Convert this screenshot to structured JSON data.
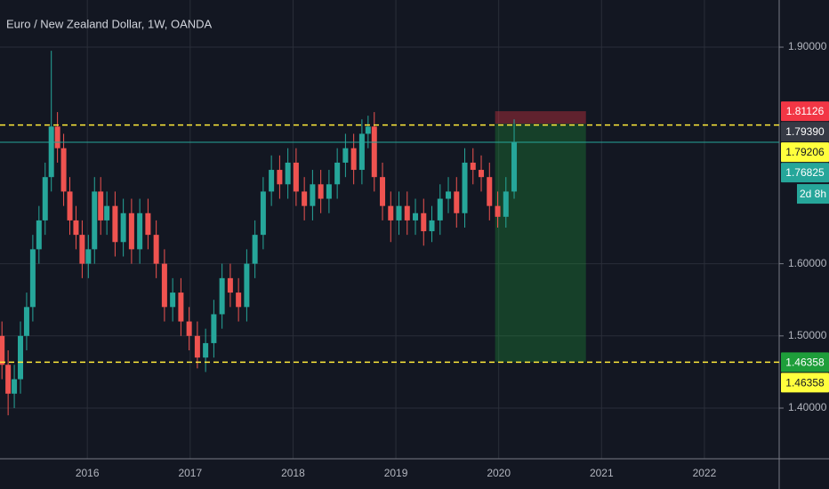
{
  "chart_data": {
    "type": "candlestick",
    "title": "Euro / New Zealand Dollar, 1W, OANDA",
    "x": [
      2015.17,
      2015.23,
      2015.29,
      2015.35,
      2015.41,
      2015.47,
      2015.53,
      2015.59,
      2015.65,
      2015.71,
      2015.77,
      2015.83,
      2015.89,
      2015.95,
      2016.01,
      2016.07,
      2016.13,
      2016.19,
      2016.27,
      2016.35,
      2016.43,
      2016.51,
      2016.59,
      2016.67,
      2016.75,
      2016.83,
      2016.91,
      2016.99,
      2017.07,
      2017.15,
      2017.23,
      2017.31,
      2017.39,
      2017.47,
      2017.55,
      2017.63,
      2017.71,
      2017.79,
      2017.87,
      2017.95,
      2018.03,
      2018.11,
      2018.19,
      2018.27,
      2018.35,
      2018.43,
      2018.51,
      2018.59,
      2018.67,
      2018.73,
      2018.79,
      2018.87,
      2018.95,
      2019.03,
      2019.11,
      2019.19,
      2019.27,
      2019.35,
      2019.43,
      2019.51,
      2019.59,
      2019.67,
      2019.75,
      2019.83,
      2019.91,
      2019.99,
      2020.07,
      2020.15
    ],
    "open": [
      1.5,
      1.46,
      1.42,
      1.44,
      1.5,
      1.54,
      1.62,
      1.66,
      1.72,
      1.79,
      1.76,
      1.7,
      1.66,
      1.64,
      1.6,
      1.62,
      1.7,
      1.66,
      1.68,
      1.63,
      1.67,
      1.62,
      1.67,
      1.64,
      1.6,
      1.54,
      1.56,
      1.52,
      1.5,
      1.47,
      1.49,
      1.53,
      1.58,
      1.56,
      1.54,
      1.6,
      1.64,
      1.7,
      1.73,
      1.71,
      1.74,
      1.7,
      1.68,
      1.71,
      1.69,
      1.71,
      1.74,
      1.76,
      1.73,
      1.78,
      1.79,
      1.72,
      1.68,
      1.66,
      1.68,
      1.66,
      1.67,
      1.645,
      1.66,
      1.69,
      1.7,
      1.67,
      1.74,
      1.73,
      1.72,
      1.68,
      1.665,
      1.7
    ],
    "high": [
      1.52,
      1.48,
      1.46,
      1.52,
      1.56,
      1.64,
      1.68,
      1.74,
      1.895,
      1.81,
      1.78,
      1.72,
      1.68,
      1.66,
      1.64,
      1.72,
      1.72,
      1.7,
      1.7,
      1.69,
      1.69,
      1.69,
      1.69,
      1.66,
      1.62,
      1.58,
      1.58,
      1.54,
      1.52,
      1.51,
      1.55,
      1.6,
      1.6,
      1.58,
      1.62,
      1.66,
      1.72,
      1.75,
      1.75,
      1.76,
      1.76,
      1.72,
      1.73,
      1.73,
      1.73,
      1.76,
      1.78,
      1.78,
      1.8,
      1.805,
      1.81,
      1.74,
      1.7,
      1.7,
      1.7,
      1.69,
      1.69,
      1.68,
      1.71,
      1.72,
      1.72,
      1.76,
      1.76,
      1.75,
      1.74,
      1.7,
      1.72,
      1.8
    ],
    "low": [
      1.44,
      1.39,
      1.4,
      1.42,
      1.48,
      1.52,
      1.6,
      1.64,
      1.7,
      1.74,
      1.68,
      1.64,
      1.62,
      1.58,
      1.58,
      1.6,
      1.64,
      1.64,
      1.61,
      1.61,
      1.6,
      1.6,
      1.62,
      1.58,
      1.52,
      1.52,
      1.5,
      1.48,
      1.455,
      1.45,
      1.47,
      1.51,
      1.54,
      1.52,
      1.52,
      1.58,
      1.62,
      1.68,
      1.69,
      1.69,
      1.68,
      1.66,
      1.66,
      1.67,
      1.67,
      1.69,
      1.72,
      1.71,
      1.71,
      1.76,
      1.7,
      1.66,
      1.63,
      1.64,
      1.64,
      1.64,
      1.625,
      1.63,
      1.64,
      1.67,
      1.65,
      1.65,
      1.71,
      1.7,
      1.66,
      1.65,
      1.65,
      1.69
    ],
    "close": [
      1.46,
      1.42,
      1.44,
      1.5,
      1.54,
      1.62,
      1.66,
      1.72,
      1.79,
      1.76,
      1.7,
      1.66,
      1.64,
      1.6,
      1.62,
      1.7,
      1.66,
      1.68,
      1.63,
      1.67,
      1.62,
      1.67,
      1.64,
      1.6,
      1.54,
      1.56,
      1.52,
      1.5,
      1.47,
      1.49,
      1.53,
      1.58,
      1.56,
      1.54,
      1.6,
      1.64,
      1.7,
      1.73,
      1.71,
      1.74,
      1.7,
      1.68,
      1.71,
      1.69,
      1.71,
      1.74,
      1.76,
      1.73,
      1.78,
      1.79,
      1.72,
      1.68,
      1.66,
      1.68,
      1.66,
      1.67,
      1.645,
      1.66,
      1.69,
      1.7,
      1.67,
      1.74,
      1.73,
      1.72,
      1.68,
      1.665,
      1.7,
      1.768
    ],
    "up_color": "#26a69a",
    "down_color": "#ef5350",
    "xlim": [
      2015.151,
      2022.727
    ],
    "xticks": [
      2016,
      2017,
      2018,
      2019,
      2020,
      2021,
      2022
    ],
    "ylim": [
      1.3298,
      1.9653
    ],
    "yticks": [
      {
        "value": 1.9,
        "label": "1.90000"
      },
      {
        "value": 1.6,
        "label": "1.60000"
      },
      {
        "value": 1.5,
        "label": "1.50000"
      },
      {
        "value": 1.4,
        "label": "1.40000"
      }
    ],
    "grid": true,
    "position": {
      "x": [
        2019.965,
        2020.848
      ],
      "stop": 1.81126,
      "entry": 1.7939,
      "target": 1.46358
    },
    "price_lines": [
      {
        "value": 1.79206,
        "color": "#ffeb3b",
        "dashed": true
      },
      {
        "value": 1.76825,
        "color": "#26a69a",
        "dashed": false
      },
      {
        "value": 1.46358,
        "color": "#ffeb3b",
        "dashed": true
      }
    ],
    "price_labels": [
      {
        "value": 1.81126,
        "label": "1.81126",
        "color": "#f23645",
        "text_color": "#ffffff"
      },
      {
        "value": 1.7939,
        "label": "1.79390",
        "color": "#363a45",
        "text_color": "#ffffff"
      },
      {
        "value": 1.79206,
        "label": "1.79206",
        "color": "#ffff3d",
        "text_color": "#131722"
      },
      {
        "value": 1.76825,
        "label": "1.76825",
        "color": "#26a69a",
        "text_color": "#ffffff"
      },
      {
        "value": 1.46358,
        "label": "1.46358",
        "color": "#1e9e3a",
        "text_color": "#ffffff"
      },
      {
        "value": 1.46358,
        "label": "1.46358",
        "color": "#ffff3d",
        "text_color": "#131722"
      }
    ],
    "countdown": "2d 8h"
  }
}
